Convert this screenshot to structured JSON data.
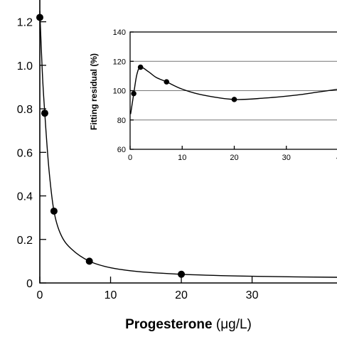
{
  "chart_data": [
    {
      "type": "line",
      "xlabel": "Progesterone",
      "xlabel_unit": "(μg/L)",
      "ylabel": "",
      "xlim": [
        0,
        42
      ],
      "ylim": [
        0,
        1.3
      ],
      "xticks": [
        0,
        10,
        20,
        30
      ],
      "yticks": [
        0,
        0.2,
        0.4,
        0.6,
        0.8,
        1.0,
        1.2
      ],
      "ytick_labels": [
        "0",
        "0.2",
        "0.4",
        "0.6",
        "0.8",
        "1.0",
        "1.2"
      ],
      "points": [
        {
          "x": 0,
          "y": 1.22
        },
        {
          "x": 0.7,
          "y": 0.78
        },
        {
          "x": 2,
          "y": 0.33
        },
        {
          "x": 7,
          "y": 0.1
        },
        {
          "x": 20,
          "y": 0.04
        }
      ],
      "fit_curve": "smooth fitted curve through points, decaying to ~0.03 at x=42",
      "grid": false
    },
    {
      "type": "line",
      "ylabel": "Fitting residual (%)",
      "xlabel": "",
      "xlim": [
        0,
        40
      ],
      "ylim": [
        60,
        140
      ],
      "xticks": [
        0,
        10,
        20,
        30
      ],
      "xtick_labels": [
        "0",
        "10",
        "20",
        "30"
      ],
      "yticks": [
        60,
        80,
        100,
        120,
        140
      ],
      "points": [
        {
          "x": 0.7,
          "y": 98
        },
        {
          "x": 2,
          "y": 116
        },
        {
          "x": 7,
          "y": 106
        },
        {
          "x": 20,
          "y": 94
        }
      ],
      "gridlines_y": [
        80,
        100,
        120
      ],
      "grid": true
    }
  ]
}
